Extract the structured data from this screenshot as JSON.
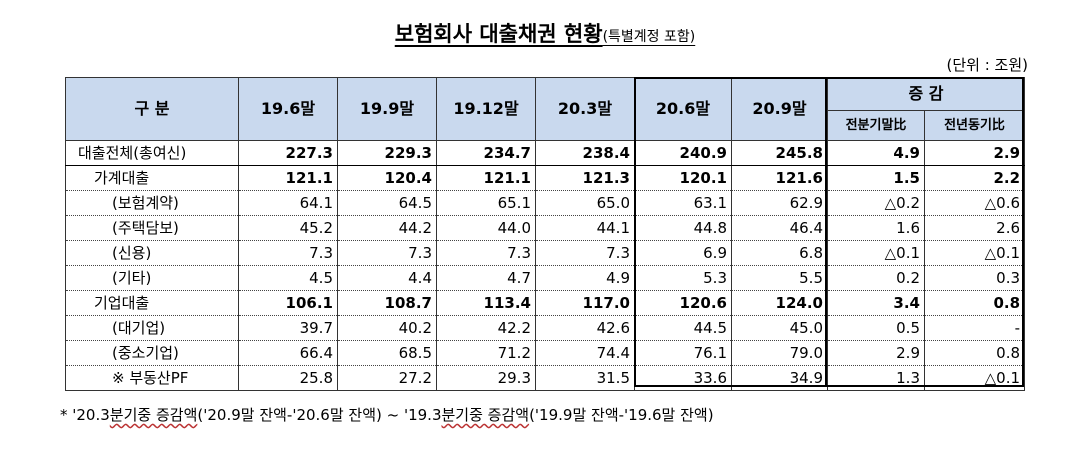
{
  "title": {
    "main": "보험회사 대출채권 현황",
    "sub": "(특별계정 포함)"
  },
  "unit": "(단위 : 조원)",
  "header": {
    "category": "구 분",
    "periods": [
      "19.6말",
      "19.9말",
      "19.12말",
      "20.3말",
      "20.6말",
      "20.9말"
    ],
    "change": "증 감",
    "change_sub": [
      "전분기말比",
      "전년동기比"
    ]
  },
  "rows": [
    {
      "label": "대출전체(총여신)",
      "values": [
        "227.3",
        "229.3",
        "234.7",
        "238.4",
        "240.9",
        "245.8",
        "4.9",
        "2.9"
      ]
    },
    {
      "label": "가계대출",
      "values": [
        "121.1",
        "120.4",
        "121.1",
        "121.3",
        "120.1",
        "121.6",
        "1.5",
        "2.2"
      ]
    },
    {
      "label": "(보험계약)",
      "values": [
        "64.1",
        "64.5",
        "65.1",
        "65.0",
        "63.1",
        "62.9",
        "△0.2",
        "△0.6"
      ]
    },
    {
      "label": "(주택담보)",
      "values": [
        "45.2",
        "44.2",
        "44.0",
        "44.1",
        "44.8",
        "46.4",
        "1.6",
        "2.6"
      ]
    },
    {
      "label": "(신용)",
      "values": [
        "7.3",
        "7.3",
        "7.3",
        "7.3",
        "6.9",
        "6.8",
        "△0.1",
        "△0.1"
      ]
    },
    {
      "label": "(기타)",
      "values": [
        "4.5",
        "4.4",
        "4.7",
        "4.9",
        "5.3",
        "5.5",
        "0.2",
        "0.3"
      ]
    },
    {
      "label": "기업대출",
      "values": [
        "106.1",
        "108.7",
        "113.4",
        "117.0",
        "120.6",
        "124.0",
        "3.4",
        "0.8"
      ]
    },
    {
      "label": "(대기업)",
      "values": [
        "39.7",
        "40.2",
        "42.2",
        "42.6",
        "44.5",
        "45.0",
        "0.5",
        "-"
      ]
    },
    {
      "label": "(중소기업)",
      "values": [
        "66.4",
        "68.5",
        "71.2",
        "74.4",
        "76.1",
        "79.0",
        "2.9",
        "0.8"
      ]
    },
    {
      "label": "※ 부동산PF",
      "values": [
        "25.8",
        "27.2",
        "29.3",
        "31.5",
        "33.6",
        "34.9",
        "1.3",
        "△0.1"
      ]
    }
  ],
  "footnote": {
    "bullet": "*",
    "text_a": " '20.3",
    "text_b": "분기중 증감액",
    "text_c": "('20.9말 잔액-'20.6말 잔액) ~ '19.3",
    "text_d": "분기중 증감액",
    "text_e": "('19.9말 잔액-'19.6말 잔액)"
  }
}
